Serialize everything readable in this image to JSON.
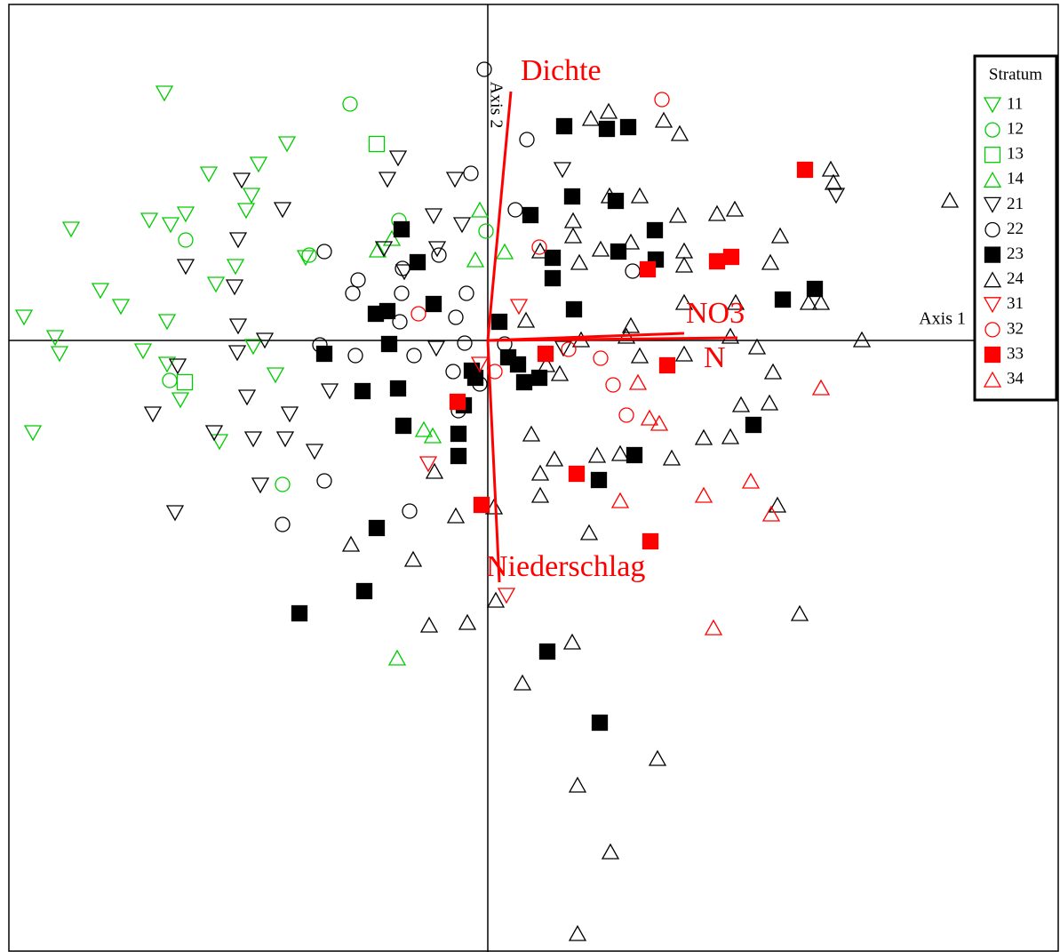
{
  "chart_data": {
    "type": "scatter",
    "x_label": "Axis 1",
    "y_label": "Axis 2",
    "xlim": [
      -5.39,
      6.41
    ],
    "ylim": [
      -6.88,
      3.78
    ],
    "legend_title": "Stratum",
    "legend": "right",
    "series": [
      {
        "name": "11",
        "color": "#00cc00",
        "marker": "triangle-down",
        "filled": false,
        "x": [
          -3.64,
          -2.26,
          -3.14,
          -2.58,
          -2.66,
          -2.72,
          -3.4,
          -3.81,
          -3.57,
          -4.69,
          -2.84,
          -3.06,
          -4.36,
          -4.13,
          -5.22,
          -3.61,
          -4.87,
          -4.82,
          -3.88,
          -3.61,
          -2.39,
          -3.46,
          -5.12,
          -3.02,
          -2.05,
          -2.64
        ],
        "y": [
          2.78,
          2.21,
          1.87,
          1.98,
          1.63,
          1.46,
          1.42,
          1.35,
          1.3,
          1.25,
          0.83,
          0.63,
          0.56,
          0.38,
          0.26,
          0.21,
          0.03,
          -0.15,
          -0.12,
          -0.27,
          -0.39,
          -0.67,
          -1.04,
          -1.14,
          0.93,
          -0.07
        ]
      },
      {
        "name": "12",
        "color": "#00cc00",
        "marker": "circle",
        "filled": false,
        "x": [
          -1.55,
          -3.4,
          -1.0,
          -2.01,
          -3.58,
          -2.31,
          -0.02
        ],
        "y": [
          2.66,
          1.13,
          1.35,
          0.96,
          -0.45,
          -1.62,
          1.23
        ]
      },
      {
        "name": "13",
        "color": "#00cc00",
        "marker": "square",
        "filled": false,
        "x": [
          -1.25,
          -3.41
        ],
        "y": [
          2.21,
          -0.47
        ]
      },
      {
        "name": "14",
        "color": "#00cc00",
        "marker": "triangle-up",
        "filled": false,
        "x": [
          -0.09,
          0.19,
          -0.14,
          -1.24,
          -1.08,
          -0.72,
          -0.62,
          -1.02
        ],
        "y": [
          1.47,
          1.0,
          0.91,
          1.02,
          1.15,
          -1.0,
          -1.07,
          -3.57
        ]
      },
      {
        "name": "21",
        "color": "#000000",
        "marker": "triangle-down",
        "filled": false,
        "x": [
          -1.01,
          -1.13,
          -0.37,
          -2.77,
          -2.31,
          -0.61,
          -0.29,
          -2.81,
          -3.4,
          -2.85,
          -1.17,
          -0.57,
          -0.94,
          -2.81,
          -2.51,
          -2.82,
          -3.49,
          -1.78,
          -2.71,
          -2.23,
          -3.77,
          -2.28,
          -2.64,
          -3.08,
          -1.95,
          -2.56,
          -3.52,
          0.84,
          3.92,
          -0.58,
          0.85
        ],
        "y": [
          2.05,
          1.81,
          1.81,
          1.8,
          1.47,
          1.4,
          1.3,
          1.13,
          0.83,
          0.6,
          1.03,
          1.03,
          0.77,
          0.16,
          0.0,
          -0.14,
          -0.29,
          -0.57,
          -0.64,
          -0.83,
          -0.83,
          -1.11,
          -1.11,
          -1.04,
          -1.25,
          -1.63,
          -1.94,
          1.92,
          1.63,
          -0.09,
          -0.09
        ]
      },
      {
        "name": "22",
        "color": "#000000",
        "marker": "circle",
        "filled": false,
        "x": [
          -0.04,
          0.44,
          -0.19,
          0.31,
          -1.84,
          -1.46,
          -1.52,
          -0.97,
          -0.55,
          -0.36,
          -0.24,
          -0.99,
          -1.89,
          -1.49,
          -0.83,
          -0.26,
          -0.39,
          0.19,
          -0.09,
          -0.33,
          -1.84,
          -2.31,
          -0.88,
          1.63,
          -0.96
        ],
        "y": [
          3.05,
          2.26,
          1.88,
          1.47,
          1.0,
          0.68,
          0.53,
          0.53,
          0.96,
          0.26,
          0.53,
          0.21,
          -0.05,
          -0.17,
          -0.17,
          -0.03,
          -0.35,
          -0.04,
          -0.49,
          -0.79,
          -1.58,
          -2.07,
          -1.92,
          0.78,
          0.81
        ]
      },
      {
        "name": "23",
        "color": "#000000",
        "marker": "square",
        "filled": true,
        "x": [
          0.86,
          1.34,
          1.58,
          0.95,
          0.48,
          1.44,
          -0.97,
          1.88,
          -0.79,
          0.73,
          1.47,
          1.89,
          0.73,
          -0.61,
          -1.13,
          -1.26,
          0.97,
          0.13,
          3.32,
          3.68,
          -1.11,
          -1.84,
          -0.18,
          0.23,
          0.34,
          -0.14,
          0.41,
          0.58,
          -1.01,
          -1.41,
          -0.27,
          -0.95,
          -0.33,
          -0.33,
          1.65,
          1.25,
          2.99,
          -1.25,
          -1.39,
          -2.12,
          0.67,
          1.26
        ],
        "y": [
          2.41,
          2.38,
          2.4,
          1.62,
          1.41,
          1.57,
          1.25,
          1.24,
          0.88,
          0.93,
          1.0,
          0.91,
          0.7,
          0.41,
          0.33,
          0.3,
          0.35,
          0.21,
          0.46,
          0.58,
          -0.04,
          -0.15,
          -0.34,
          -0.19,
          -0.27,
          -0.42,
          -0.47,
          -0.42,
          -0.54,
          -0.57,
          -0.73,
          -0.96,
          -1.05,
          -1.3,
          -1.29,
          -1.57,
          -0.95,
          -2.11,
          -2.82,
          -3.07,
          -3.5,
          -4.3
        ]
      },
      {
        "name": "24",
        "color": "#000000",
        "marker": "triangle-up",
        "filled": false,
        "x": [
          1.16,
          1.36,
          1.98,
          2.16,
          1.37,
          1.71,
          2.14,
          2.58,
          2.78,
          3.86,
          3.89,
          5.2,
          0.96,
          0.96,
          1.27,
          1.61,
          2.21,
          2.21,
          1.03,
          0.59,
          3.29,
          3.18,
          2.21,
          2.79,
          3.61,
          3.75,
          1.61,
          1.56,
          0.43,
          2.73,
          4.21,
          3.03,
          1.71,
          2.21,
          3.21,
          0.81,
          0.66,
          1.05,
          2.85,
          3.17,
          0.49,
          0.75,
          1.23,
          2.07,
          2.43,
          2.73,
          1.49,
          0.59,
          0.59,
          3.26,
          -0.6,
          -0.36,
          0.07,
          -1.54,
          -0.84,
          1.14,
          0.09,
          3.51,
          -0.66,
          -0.23,
          0.95,
          0.39,
          1.91,
          1.01,
          1.38,
          1.01
        ],
        "y": [
          2.5,
          2.58,
          2.48,
          2.33,
          1.63,
          1.63,
          1.41,
          1.43,
          1.48,
          1.93,
          1.78,
          1.58,
          1.35,
          1.18,
          1.03,
          1.11,
          1.01,
          0.85,
          0.88,
          1.01,
          1.18,
          0.88,
          0.43,
          0.43,
          0.43,
          0.43,
          0.17,
          0.05,
          0.23,
          0.05,
          0.01,
          -0.07,
          -0.17,
          -0.15,
          -0.35,
          -0.37,
          -0.27,
          0.01,
          -0.72,
          -0.7,
          -1.05,
          -1.33,
          -1.29,
          -1.32,
          -1.09,
          -1.08,
          -1.27,
          -1.49,
          -1.74,
          -1.85,
          -1.47,
          -1.97,
          -1.87,
          -2.29,
          -2.46,
          -2.16,
          -2.92,
          -3.07,
          -3.2,
          -3.17,
          -3.39,
          -3.85,
          -4.7,
          -5.0,
          -5.75,
          -6.67
        ]
      },
      {
        "name": "31",
        "color": "#ff0000",
        "marker": "triangle-down",
        "filled": false,
        "x": [
          0.35,
          -0.67,
          0.21,
          -0.09
        ],
        "y": [
          0.38,
          -1.39,
          -2.87,
          -0.27
        ]
      },
      {
        "name": "32",
        "color": "#ff0000",
        "marker": "circle",
        "filled": false,
        "x": [
          1.96,
          0.58,
          -0.78,
          1.27,
          1.41,
          1.56,
          0.08,
          0.91
        ],
        "y": [
          2.71,
          1.05,
          0.3,
          -0.2,
          -0.5,
          -0.84,
          -0.35,
          -0.1
        ]
      },
      {
        "name": "33",
        "color": "#ff0000",
        "marker": "square",
        "filled": true,
        "x": [
          3.57,
          2.58,
          2.74,
          1.8,
          0.65,
          2.02,
          -0.34,
          1.0,
          -0.07,
          1.83
        ],
        "y": [
          1.92,
          0.89,
          0.94,
          0.8,
          -0.15,
          -0.28,
          -0.69,
          -1.5,
          -1.85,
          -2.26
        ]
      },
      {
        "name": "34",
        "color": "#ff0000",
        "marker": "triangle-up",
        "filled": false,
        "x": [
          1.69,
          3.75,
          1.82,
          1.93,
          1.49,
          2.43,
          2.96,
          3.19,
          2.54
        ],
        "y": [
          -0.47,
          -0.53,
          -0.87,
          -0.93,
          -1.8,
          -1.74,
          -1.58,
          -1.95,
          -3.23
        ]
      }
    ],
    "vectors": [
      {
        "name": "Dichte",
        "x": 0.26,
        "y": 2.8
      },
      {
        "name": "NO3",
        "x": 2.21,
        "y": 0.08
      },
      {
        "name": "N",
        "x": 2.81,
        "y": 0.03
      },
      {
        "name": "Niederschlag",
        "x": 0.13,
        "y": -2.72
      }
    ],
    "vector_color": "#ff0000"
  }
}
